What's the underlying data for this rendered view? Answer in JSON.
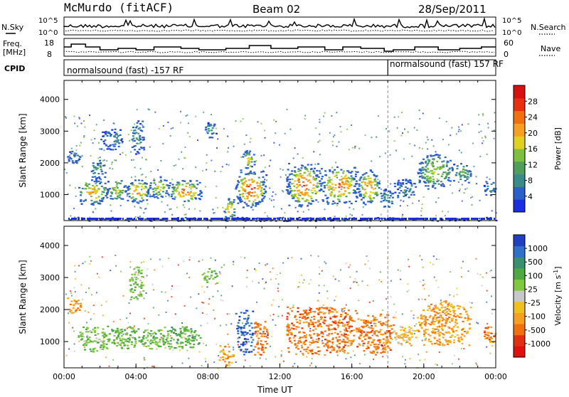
{
  "header": {
    "station": "McMurdo (fitACF)",
    "beam": "Beam 02",
    "date": "28/Sep/2011"
  },
  "top_panels": {
    "nsky_label": "N.Sky",
    "nsearch_label": "N.Search",
    "count_ticks": [
      "10^5",
      "10^0"
    ],
    "freq_label_1": "Freq.",
    "freq_label_2": "[MHz]",
    "freq_ticks": [
      "18",
      "8"
    ],
    "nave_label": "Nave",
    "nave_ticks": [
      "60",
      "0"
    ],
    "cpid_label": "CPID",
    "cpid_left": "normalsound (fast) -157 RF",
    "cpid_right": "normalsound (fast) 157 RF",
    "cpid_switch_hour": 18
  },
  "chart_data": [
    {
      "type": "heatmap",
      "quantity": "Power",
      "ylabel": "Slant Range [km]",
      "yticks": [
        "1000",
        "2000",
        "3000",
        "4000"
      ],
      "ylim": [
        180,
        4600
      ],
      "xlim": [
        0,
        24
      ],
      "colorbar_label": "Power [dB]",
      "colorbar_ticks": [
        "4",
        "8",
        "12",
        "16",
        "20",
        "24",
        "28"
      ],
      "colorbar_colors": [
        "#1b2ee0",
        "#2a60c8",
        "#3b8a8a",
        "#4f9e5c",
        "#7fbf3f",
        "#e0d020",
        "#f5a020",
        "#f07010",
        "#e83010",
        "#d81010"
      ],
      "patches": [
        {
          "t0": 0.1,
          "t1": 0.9,
          "r0": 2000,
          "r1": 2400,
          "level": 0.3
        },
        {
          "t0": 0.7,
          "t1": 2.4,
          "r0": 700,
          "r1": 1500,
          "level": 0.7
        },
        {
          "t0": 1.3,
          "t1": 2.3,
          "r0": 1500,
          "r1": 2100,
          "level": 0.35
        },
        {
          "t0": 2.4,
          "t1": 3.4,
          "r0": 800,
          "r1": 1500,
          "level": 0.55
        },
        {
          "t0": 2.0,
          "t1": 3.2,
          "r0": 2400,
          "r1": 3100,
          "level": 0.25
        },
        {
          "t0": 3.4,
          "t1": 4.7,
          "r0": 750,
          "r1": 1500,
          "level": 0.8
        },
        {
          "t0": 3.7,
          "t1": 4.4,
          "r0": 2300,
          "r1": 3400,
          "level": 0.3
        },
        {
          "t0": 4.7,
          "t1": 5.8,
          "r0": 900,
          "r1": 1600,
          "level": 0.6
        },
        {
          "t0": 5.8,
          "t1": 7.6,
          "r0": 750,
          "r1": 1500,
          "level": 0.85
        },
        {
          "t0": 7.8,
          "t1": 8.5,
          "r0": 2800,
          "r1": 3300,
          "level": 0.3
        },
        {
          "t0": 8.8,
          "t1": 9.5,
          "r0": 250,
          "r1": 900,
          "level": 0.75
        },
        {
          "t0": 9.5,
          "t1": 11.2,
          "r0": 600,
          "r1": 1800,
          "level": 0.95
        },
        {
          "t0": 9.8,
          "t1": 10.6,
          "r0": 1800,
          "r1": 2400,
          "level": 0.6
        },
        {
          "t0": 12.3,
          "t1": 14.3,
          "r0": 600,
          "r1": 2000,
          "level": 0.9
        },
        {
          "t0": 14.3,
          "t1": 16.3,
          "r0": 700,
          "r1": 1900,
          "level": 0.85
        },
        {
          "t0": 16.3,
          "t1": 17.5,
          "r0": 700,
          "r1": 1800,
          "level": 0.8
        },
        {
          "t0": 17.5,
          "t1": 18.3,
          "r0": 600,
          "r1": 1200,
          "level": 0.35
        },
        {
          "t0": 18.3,
          "t1": 19.6,
          "r0": 900,
          "r1": 1500,
          "level": 0.25
        },
        {
          "t0": 19.6,
          "t1": 21.6,
          "r0": 1200,
          "r1": 2300,
          "level": 0.55
        },
        {
          "t0": 21.6,
          "t1": 22.6,
          "r0": 1400,
          "r1": 2000,
          "level": 0.4
        },
        {
          "t0": 23.3,
          "t1": 24.0,
          "r0": 1000,
          "r1": 1500,
          "level": 0.3
        },
        {
          "t0": 0.0,
          "t1": 24.0,
          "r0": 180,
          "r1": 300,
          "level": 0.1
        }
      ]
    },
    {
      "type": "heatmap",
      "quantity": "Velocity",
      "ylabel": "Slant Range [km]",
      "yticks": [
        "1000",
        "2000",
        "3000",
        "4000"
      ],
      "ylim": [
        180,
        4600
      ],
      "xlim": [
        0,
        24
      ],
      "colorbar_label": "Velocity [m s",
      "colorbar_unit_sup": "-1",
      "colorbar_unit_end": "]",
      "colorbar_ticks": [
        "1000",
        "500",
        "100",
        "25",
        "-25",
        "-100",
        "-500",
        "-1000"
      ],
      "colorbar_colors": [
        "#2040c0",
        "#3070c8",
        "#3a8f70",
        "#50a840",
        "#80c840",
        "#c8c8c8",
        "#f0c020",
        "#f5a020",
        "#f07010",
        "#e03010",
        "#e01010"
      ],
      "patches": [
        {
          "t0": 0.1,
          "t1": 0.9,
          "r0": 1900,
          "r1": 2400,
          "level": 0.75
        },
        {
          "t0": 0.7,
          "t1": 2.4,
          "r0": 700,
          "r1": 1500,
          "level": 0.38
        },
        {
          "t0": 2.4,
          "t1": 4.7,
          "r0": 800,
          "r1": 1500,
          "level": 0.35
        },
        {
          "t0": 3.6,
          "t1": 4.4,
          "r0": 2300,
          "r1": 3400,
          "level": 0.4
        },
        {
          "t0": 4.7,
          "t1": 7.6,
          "r0": 750,
          "r1": 1500,
          "level": 0.33
        },
        {
          "t0": 7.6,
          "t1": 8.5,
          "r0": 2800,
          "r1": 3300,
          "level": 0.4
        },
        {
          "t0": 8.6,
          "t1": 9.4,
          "r0": 200,
          "r1": 900,
          "level": 0.7
        },
        {
          "t0": 9.5,
          "t1": 10.5,
          "r0": 600,
          "r1": 2000,
          "level": 0.08
        },
        {
          "t0": 10.5,
          "t1": 11.3,
          "r0": 600,
          "r1": 1700,
          "level": 0.78
        },
        {
          "t0": 12.3,
          "t1": 16.3,
          "r0": 600,
          "r1": 2100,
          "level": 0.78
        },
        {
          "t0": 16.3,
          "t1": 18.3,
          "r0": 600,
          "r1": 1900,
          "level": 0.78
        },
        {
          "t0": 18.3,
          "t1": 19.6,
          "r0": 900,
          "r1": 1500,
          "level": 0.62
        },
        {
          "t0": 19.6,
          "t1": 22.6,
          "r0": 900,
          "r1": 2300,
          "level": 0.7
        },
        {
          "t0": 23.3,
          "t1": 24.0,
          "r0": 1000,
          "r1": 1500,
          "level": 0.78
        }
      ]
    }
  ],
  "xaxis": {
    "xlabel": "Time UT",
    "ticks": [
      "00:00",
      "04:00",
      "08:00",
      "12:00",
      "16:00",
      "20:00",
      "00:00"
    ]
  }
}
